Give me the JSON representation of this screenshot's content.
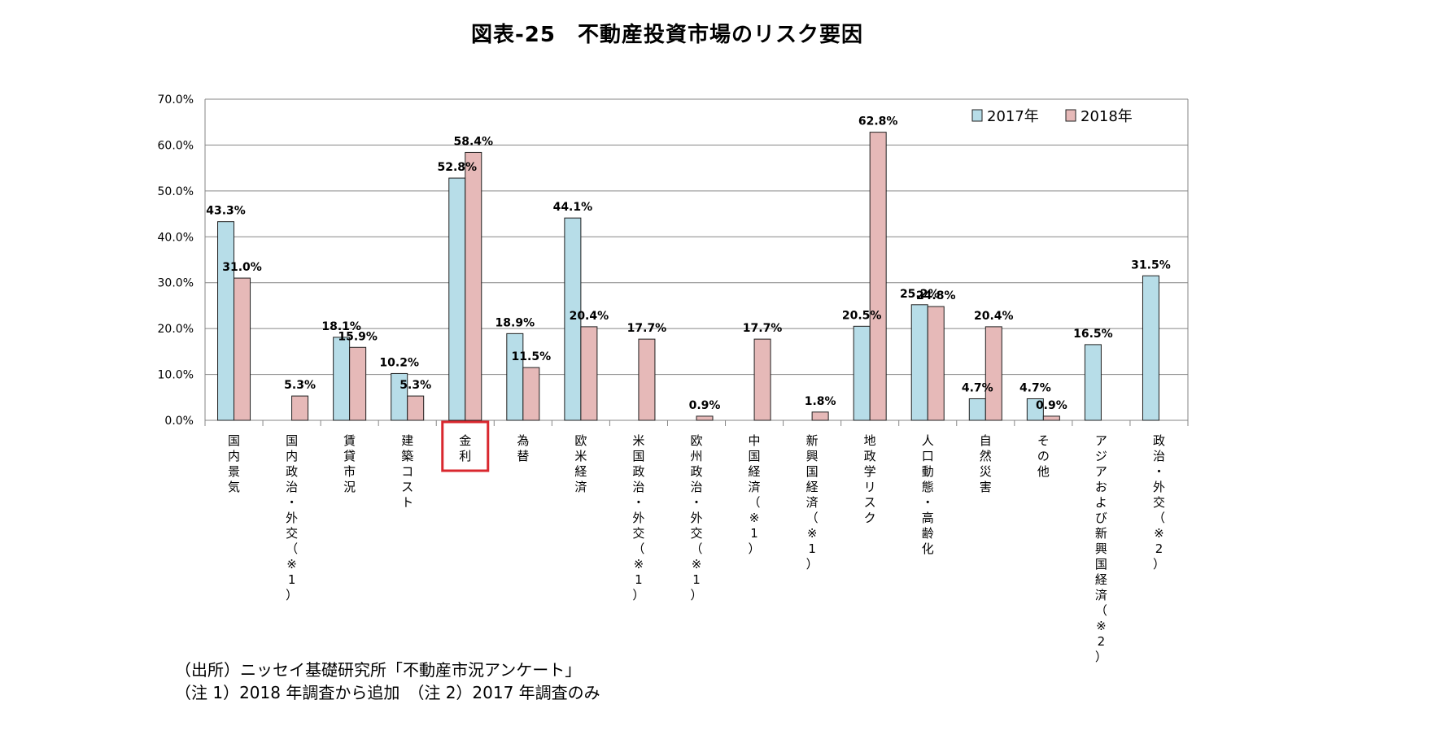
{
  "chart_data": {
    "type": "bar",
    "title": "図表-25　不動産投資市場のリスク要因",
    "xlabel": "",
    "ylabel": "",
    "ylim": [
      0,
      70
    ],
    "yticks": [
      "0.0%",
      "10.0%",
      "20.0%",
      "30.0%",
      "40.0%",
      "50.0%",
      "60.0%",
      "70.0%"
    ],
    "grid": true,
    "legend_position": "top-right",
    "highlighted_category": "金利",
    "categories": [
      "国内景気",
      "国内政治・外交（※1）",
      "賃貸市況",
      "建築コスト",
      "金利",
      "為替",
      "欧米経済",
      "米国政治・外交（※1）",
      "欧州政治・外交（※1）",
      "中国経済（※1）",
      "新興国経済（※1）",
      "地政学リスク",
      "人口動態・高齢化",
      "自然災害",
      "その他",
      "アジアおよび新興国経済（※2）",
      "政治・外交（※2）"
    ],
    "series": [
      {
        "name": "2017年",
        "color": "#b7dde8",
        "values": [
          43.3,
          null,
          18.1,
          10.2,
          52.8,
          18.9,
          44.1,
          null,
          null,
          null,
          null,
          20.5,
          25.2,
          4.7,
          4.7,
          16.5,
          31.5
        ],
        "labels": [
          "43.3%",
          "",
          "18.1%",
          "10.2%",
          "52.8%",
          "18.9%",
          "44.1%",
          "",
          "",
          "",
          "",
          "20.5%",
          "25.2%",
          "4.7%",
          "4.7%",
          "16.5%",
          "31.5%"
        ]
      },
      {
        "name": "2018年",
        "color": "#e6b9b8",
        "values": [
          31.0,
          5.3,
          15.9,
          5.3,
          58.4,
          11.5,
          20.4,
          17.7,
          0.9,
          17.7,
          1.8,
          62.8,
          24.8,
          20.4,
          0.9,
          null,
          null
        ],
        "labels": [
          "31.0%",
          "5.3%",
          "15.9%",
          "5.3%",
          "58.4%",
          "11.5%",
          "20.4%",
          "17.7%",
          "0.9%",
          "17.7%",
          "1.8%",
          "62.8%",
          "24.8%",
          "20.4%",
          "0.9%",
          "",
          ""
        ]
      }
    ]
  },
  "notes": {
    "source": "（出所）ニッセイ基礎研究所「不動産市況アンケート」",
    "remarks": "（注 1）2018 年調査から追加　（注 2）2017 年調査のみ"
  },
  "colors": {
    "grid": "#868686",
    "bar_border": "#1f1f1f",
    "highlight": "#d9272e"
  }
}
